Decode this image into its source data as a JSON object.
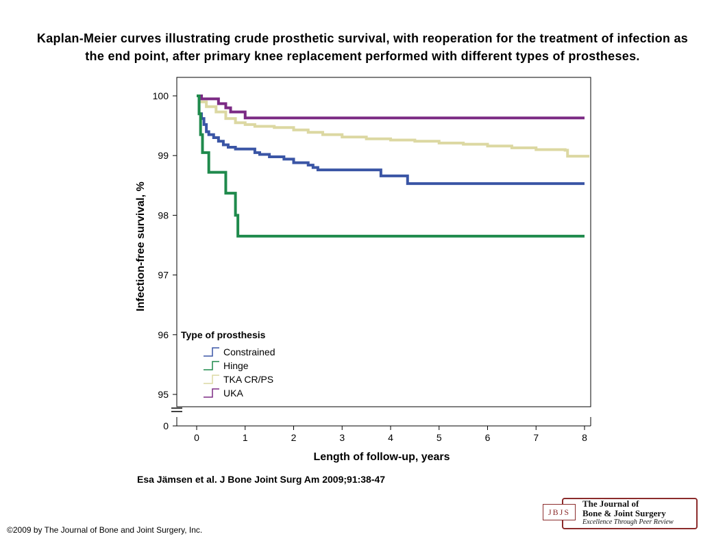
{
  "slide": {
    "title": "Kaplan-Meier curves illustrating crude prosthetic survival, with reoperation for the treatment of infection as the end point, after primary knee replacement performed with different types of prostheses.",
    "citation": "Esa Jämsen et al. J Bone Joint Surg Am 2009;91:38-47",
    "copyright": "©2009 by The Journal of Bone and Joint Surgery, Inc.",
    "journal_logo": {
      "abbrev": "JBJS",
      "name_line1": "The Journal of",
      "name_line2": "Bone & Joint Surgery",
      "tagline": "Excellence Through Peer Review"
    }
  },
  "chart_data": {
    "type": "line",
    "step": true,
    "xlabel": "Length of follow-up, years",
    "ylabel": "Infection-free survival, %",
    "xlim": [
      0,
      8
    ],
    "ylim": [
      95,
      100
    ],
    "y_axis_break": true,
    "y_broken_to": 0,
    "x_ticks": [
      "0",
      "1",
      "2",
      "3",
      "4",
      "5",
      "6",
      "7",
      "8"
    ],
    "y_ticks": [
      "95",
      "96",
      "97",
      "98",
      "99",
      "100"
    ],
    "y_tick_zero": "0",
    "grid": false,
    "legend": {
      "title": "Type of prosthesis",
      "placement": "bottom-left"
    },
    "colors": {
      "Constrained": "#3a55a5",
      "Hinge": "#1f8a4c",
      "TKA CR/PS": "#dcd8a2",
      "UKA": "#7b2a84"
    },
    "series": [
      {
        "name": "UKA",
        "points": [
          [
            0,
            100
          ],
          [
            0.1,
            99.95
          ],
          [
            0.45,
            99.87
          ],
          [
            0.6,
            99.8
          ],
          [
            0.7,
            99.73
          ],
          [
            1.0,
            99.63
          ],
          [
            8.0,
            99.63
          ]
        ]
      },
      {
        "name": "TKA CR/PS",
        "points": [
          [
            0,
            100
          ],
          [
            0.05,
            99.9
          ],
          [
            0.2,
            99.82
          ],
          [
            0.4,
            99.73
          ],
          [
            0.6,
            99.62
          ],
          [
            0.8,
            99.55
          ],
          [
            1.0,
            99.52
          ],
          [
            1.2,
            99.49
          ],
          [
            1.6,
            99.47
          ],
          [
            2.0,
            99.43
          ],
          [
            2.3,
            99.39
          ],
          [
            2.6,
            99.35
          ],
          [
            3.0,
            99.31
          ],
          [
            3.5,
            99.28
          ],
          [
            4.0,
            99.26
          ],
          [
            4.5,
            99.24
          ],
          [
            5.0,
            99.21
          ],
          [
            5.5,
            99.19
          ],
          [
            6.0,
            99.16
          ],
          [
            6.5,
            99.13
          ],
          [
            7.0,
            99.1
          ],
          [
            7.6,
            99.09
          ],
          [
            7.65,
            98.99
          ],
          [
            8.1,
            98.99
          ]
        ]
      },
      {
        "name": "Constrained",
        "points": [
          [
            0,
            100
          ],
          [
            0.05,
            99.7
          ],
          [
            0.1,
            99.62
          ],
          [
            0.15,
            99.52
          ],
          [
            0.2,
            99.4
          ],
          [
            0.25,
            99.35
          ],
          [
            0.35,
            99.3
          ],
          [
            0.45,
            99.24
          ],
          [
            0.55,
            99.18
          ],
          [
            0.65,
            99.14
          ],
          [
            0.8,
            99.11
          ],
          [
            1.2,
            99.05
          ],
          [
            1.3,
            99.02
          ],
          [
            1.5,
            98.98
          ],
          [
            1.8,
            98.94
          ],
          [
            2.0,
            98.88
          ],
          [
            2.3,
            98.84
          ],
          [
            2.4,
            98.8
          ],
          [
            2.5,
            98.76
          ],
          [
            3.8,
            98.66
          ],
          [
            4.35,
            98.53
          ],
          [
            8.0,
            98.53
          ]
        ]
      },
      {
        "name": "Hinge",
        "points": [
          [
            0,
            100
          ],
          [
            0.05,
            99.7
          ],
          [
            0.08,
            99.35
          ],
          [
            0.12,
            99.05
          ],
          [
            0.25,
            98.72
          ],
          [
            0.6,
            98.37
          ],
          [
            0.8,
            98.0
          ],
          [
            0.85,
            97.65
          ],
          [
            8.0,
            97.65
          ]
        ]
      }
    ]
  }
}
